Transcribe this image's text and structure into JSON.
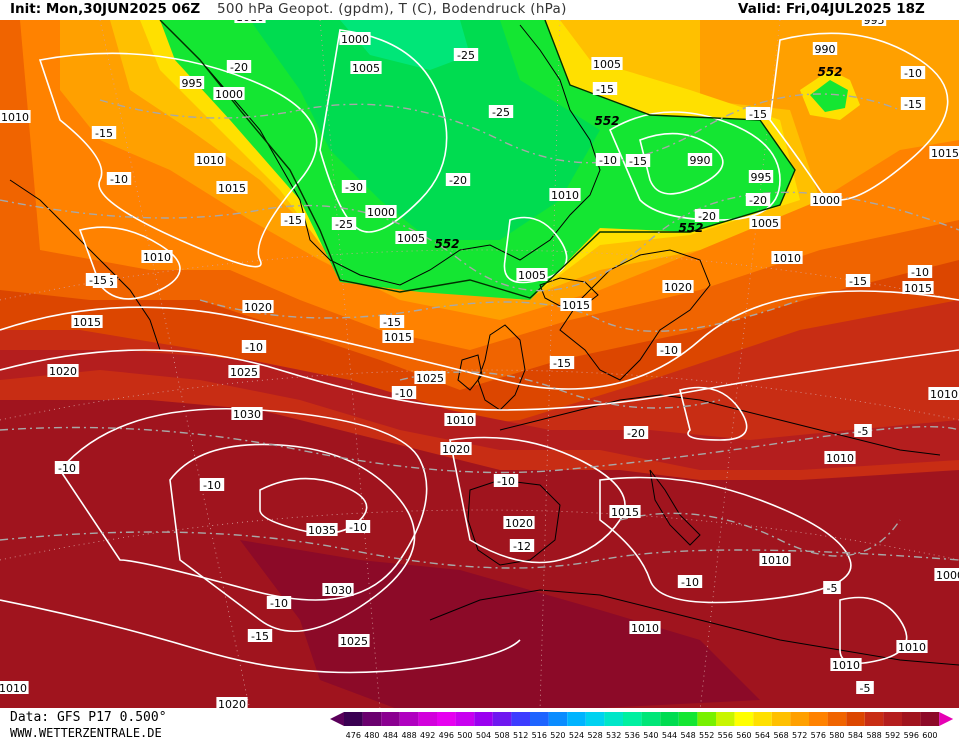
{
  "header": {
    "init": "Init: Mon,30JUN2025 06Z",
    "title": "500 hPa Geopot. (gpdm), T (C), Bodendruck (hPa)",
    "valid": "Valid: Fri,04JUL2025 18Z"
  },
  "footer": {
    "data_source": "Data: GFS P17 0.500°",
    "site": "WWW.WETTERZENTRALE.DE"
  },
  "legend": {
    "values": [
      "476",
      "480",
      "484",
      "488",
      "492",
      "496",
      "500",
      "504",
      "508",
      "512",
      "516",
      "520",
      "524",
      "528",
      "532",
      "536",
      "540",
      "544",
      "548",
      "552",
      "556",
      "560",
      "564",
      "568",
      "572",
      "576",
      "580",
      "584",
      "588",
      "592",
      "596",
      "600"
    ],
    "colors": [
      "#3a0052",
      "#6a006e",
      "#8a0090",
      "#b000c0",
      "#d200dc",
      "#e600f0",
      "#c800f0",
      "#9a00f0",
      "#6e18f0",
      "#3c3cff",
      "#1e64ff",
      "#0a8cff",
      "#00b4ff",
      "#00d2f0",
      "#00e6c8",
      "#00f0a0",
      "#00e678",
      "#00dc50",
      "#14e632",
      "#78f000",
      "#c8f500",
      "#ffff00",
      "#ffe000",
      "#ffc000",
      "#ffa000",
      "#ff8200",
      "#f06400",
      "#dc4600",
      "#c82d14",
      "#b41e1e",
      "#a0141e",
      "#8c0a28"
    ],
    "arrow_left": "#5a005a",
    "arrow_right": "#e600b4"
  },
  "map": {
    "contour_552_label": "552",
    "pressure_labels": [
      "1000",
      "995",
      "1000",
      "1005",
      "1010",
      "1015",
      "1010",
      "1015",
      "1020",
      "1020",
      "1025",
      "1030",
      "1035",
      "1030",
      "1025",
      "1020",
      "1020",
      "1000",
      "1005",
      "1005",
      "1010",
      "1015",
      "1010",
      "1020",
      "1025",
      "1020",
      "1015",
      "1015",
      "1010",
      "1010",
      "1010",
      "990",
      "995",
      "1000",
      "1005",
      "1005",
      "1010",
      "1015",
      "1010",
      "1010",
      "1015",
      "1010",
      "990",
      "995",
      "1010",
      "1010",
      "1010",
      "1000"
    ],
    "temp_labels": [
      "-20",
      "-25",
      "-15",
      "-10",
      "-15",
      "-15",
      "-10",
      "-10",
      "-10",
      "-10",
      "-10",
      "-10",
      "-15",
      "-30",
      "-25",
      "-20",
      "-20",
      "-25",
      "-15",
      "-15",
      "-15",
      "-20",
      "-20",
      "-10",
      "-10",
      "-15",
      "-15",
      "-10",
      "-15",
      "-5",
      "-10",
      "-10",
      "-12",
      "-15",
      "-5",
      "-5",
      "-10",
      "-15"
    ],
    "colors": {
      "ocean_red": "#b41e1e",
      "dark_red": "#a0141e",
      "crimson": "#8c0a28",
      "orange": "#f06400",
      "orange_light": "#ff8200",
      "amber": "#ffa000",
      "gold": "#ffc000",
      "yellow": "#ffe000",
      "lime": "#c8f500",
      "green": "#14e632",
      "green_mid": "#00dc50",
      "teal": "#00e678",
      "red2": "#c82d14",
      "red3": "#dc4600"
    }
  }
}
